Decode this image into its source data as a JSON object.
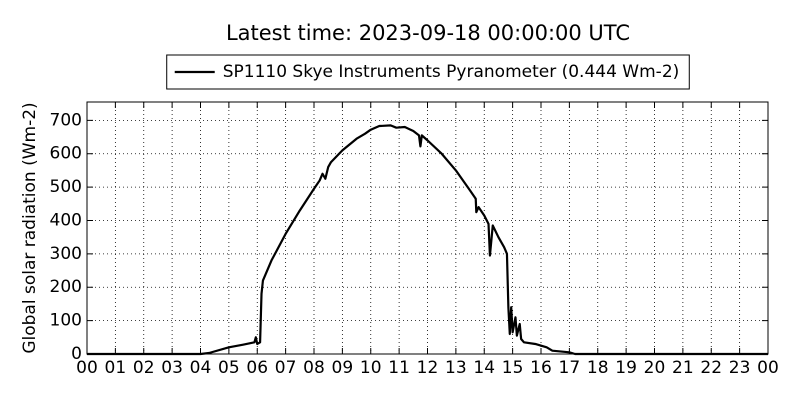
{
  "chart_data": {
    "type": "line",
    "title": "Latest time: 2023-09-18 00:00:00 UTC",
    "ylabel": "Global solar radiation (Wm-2)",
    "x": [
      0,
      4,
      4.3,
      5,
      5.5,
      5.9,
      5.95,
      6.0,
      6.1,
      6.15,
      6.2,
      6.5,
      7,
      7.5,
      8,
      8.2,
      8.3,
      8.4,
      8.5,
      8.6,
      9,
      9.5,
      9.8,
      10,
      10.3,
      10.7,
      10.9,
      11.2,
      11.5,
      11.7,
      11.75,
      11.8,
      12,
      12.5,
      13,
      13.5,
      13.7,
      13.72,
      13.8,
      14,
      14.15,
      14.2,
      14.3,
      14.5,
      14.7,
      14.8,
      14.85,
      14.9,
      14.95,
      15.0,
      15.1,
      15.15,
      15.25,
      15.3,
      15.4,
      15.8,
      16.2,
      16.4,
      17,
      17.2,
      24
    ],
    "series": [
      {
        "name": "SP1110 Skye Instruments Pyranometer (0.444 Wm-2)",
        "color": "#000000",
        "values": [
          0,
          0,
          3,
          20,
          28,
          35,
          50,
          30,
          35,
          180,
          220,
          280,
          360,
          430,
          495,
          520,
          540,
          525,
          560,
          575,
          610,
          645,
          660,
          672,
          683,
          685,
          678,
          680,
          668,
          655,
          622,
          655,
          640,
          600,
          550,
          490,
          465,
          425,
          440,
          415,
          390,
          295,
          385,
          350,
          320,
          300,
          140,
          60,
          140,
          65,
          110,
          55,
          90,
          45,
          35,
          30,
          20,
          10,
          5,
          0,
          0
        ]
      }
    ],
    "xlim": [
      0,
      24
    ],
    "xticks": [
      {
        "value": 0,
        "label": "00"
      },
      {
        "value": 1,
        "label": "01"
      },
      {
        "value": 2,
        "label": "02"
      },
      {
        "value": 3,
        "label": "03"
      },
      {
        "value": 4,
        "label": "04"
      },
      {
        "value": 5,
        "label": "05"
      },
      {
        "value": 6,
        "label": "06"
      },
      {
        "value": 7,
        "label": "07"
      },
      {
        "value": 8,
        "label": "08"
      },
      {
        "value": 9,
        "label": "09"
      },
      {
        "value": 10,
        "label": "10"
      },
      {
        "value": 11,
        "label": "11"
      },
      {
        "value": 12,
        "label": "12"
      },
      {
        "value": 13,
        "label": "13"
      },
      {
        "value": 14,
        "label": "14"
      },
      {
        "value": 15,
        "label": "15"
      },
      {
        "value": 16,
        "label": "16"
      },
      {
        "value": 17,
        "label": "17"
      },
      {
        "value": 18,
        "label": "18"
      },
      {
        "value": 19,
        "label": "19"
      },
      {
        "value": 20,
        "label": "20"
      },
      {
        "value": 21,
        "label": "21"
      },
      {
        "value": 22,
        "label": "22"
      },
      {
        "value": 23,
        "label": "23"
      },
      {
        "value": 24,
        "label": "00"
      }
    ],
    "ylim": [
      0,
      755
    ],
    "yticks": [
      0,
      100,
      200,
      300,
      400,
      500,
      600,
      700
    ],
    "grid": true,
    "legend": "top"
  }
}
